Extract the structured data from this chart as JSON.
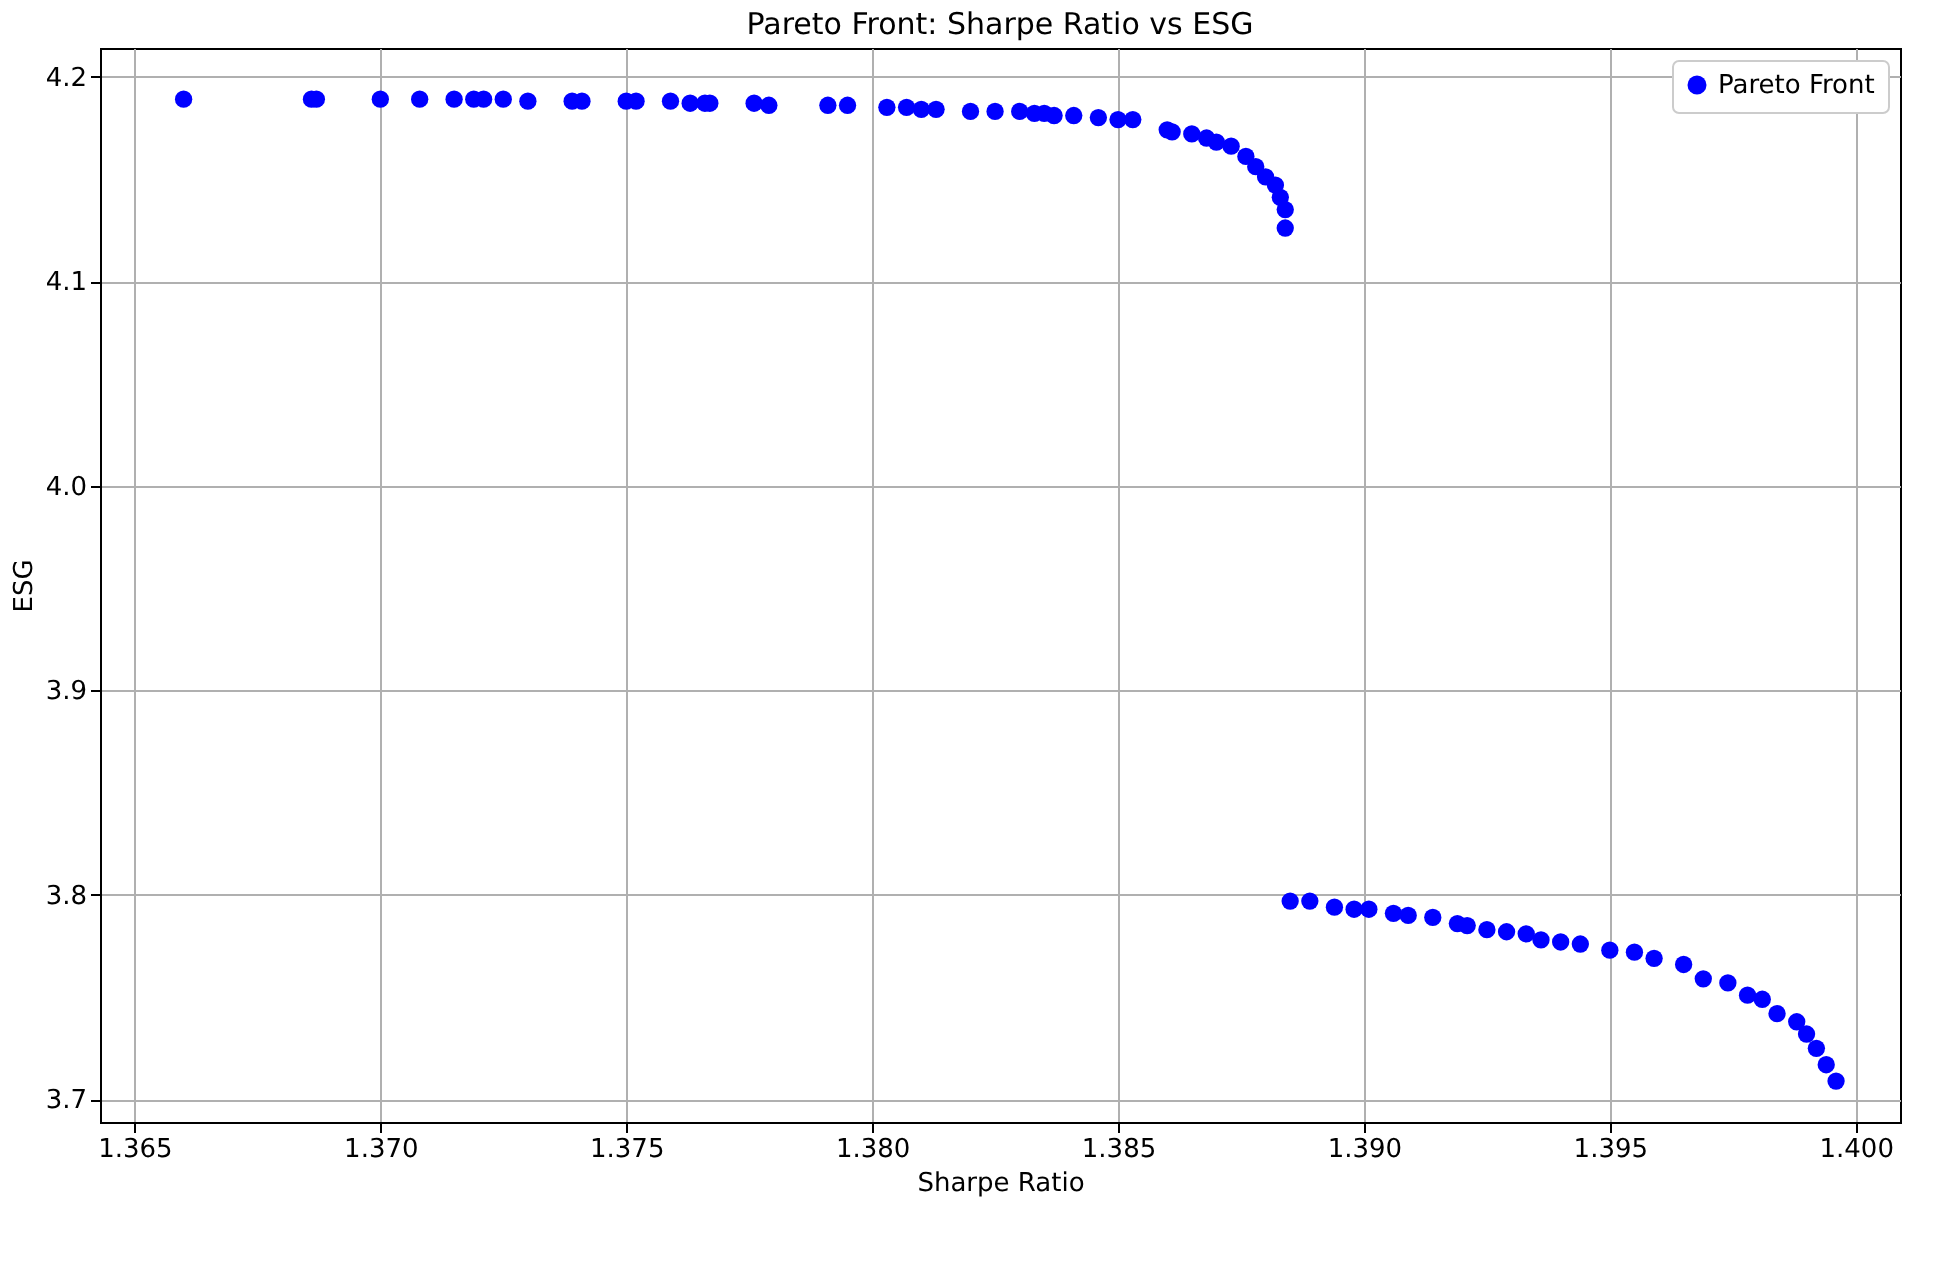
{
  "chart_data": {
    "type": "scatter",
    "title": "Pareto Front: Sharpe Ratio vs ESG",
    "xlabel": "Sharpe Ratio",
    "ylabel": "ESG",
    "xlim": [
      1.3643,
      1.4009
    ],
    "xticks": [
      {
        "value": 1.365,
        "label": "1.365"
      },
      {
        "value": 1.37,
        "label": "1.370"
      },
      {
        "value": 1.375,
        "label": "1.375"
      },
      {
        "value": 1.38,
        "label": "1.380"
      },
      {
        "value": 1.385,
        "label": "1.385"
      },
      {
        "value": 1.39,
        "label": "1.390"
      },
      {
        "value": 1.395,
        "label": "1.395"
      },
      {
        "value": 1.4,
        "label": "1.400"
      }
    ],
    "ylim": [
      3.689,
      4.214
    ],
    "yticks": [
      {
        "value": 3.7,
        "label": "3.7"
      },
      {
        "value": 3.8,
        "label": "3.8"
      },
      {
        "value": 3.9,
        "label": "3.9"
      },
      {
        "value": 4.0,
        "label": "4.0"
      },
      {
        "value": 4.1,
        "label": "4.1"
      },
      {
        "value": 4.2,
        "label": "4.2"
      }
    ],
    "grid": true,
    "legend": "top right",
    "marker": "circle",
    "series": [
      {
        "name": "Pareto Front",
        "color": "#0000ff",
        "x": [
          1.366,
          1.3686,
          1.3687,
          1.37,
          1.3708,
          1.3715,
          1.3719,
          1.3721,
          1.3725,
          1.373,
          1.3739,
          1.3741,
          1.375,
          1.3752,
          1.3759,
          1.3763,
          1.3766,
          1.3767,
          1.3776,
          1.3779,
          1.3791,
          1.3795,
          1.3803,
          1.3807,
          1.381,
          1.3813,
          1.382,
          1.3825,
          1.383,
          1.3833,
          1.3835,
          1.3837,
          1.3841,
          1.3846,
          1.385,
          1.3853,
          1.386,
          1.3861,
          1.3865,
          1.3868,
          1.387,
          1.3873,
          1.3876,
          1.3878,
          1.388,
          1.3882,
          1.3883,
          1.3884,
          1.3884,
          1.3885,
          1.3889,
          1.3894,
          1.3898,
          1.3901,
          1.3906,
          1.3909,
          1.3914,
          1.3919,
          1.3921,
          1.3925,
          1.3929,
          1.3933,
          1.3936,
          1.394,
          1.3944,
          1.395,
          1.3955,
          1.3959,
          1.3965,
          1.3969,
          1.3974,
          1.3978,
          1.3981,
          1.3984,
          1.3988,
          1.399,
          1.3992,
          1.3994,
          1.3996
        ],
        "values": [
          4.189,
          4.189,
          4.189,
          4.189,
          4.189,
          4.189,
          4.189,
          4.189,
          4.189,
          4.188,
          4.188,
          4.188,
          4.188,
          4.188,
          4.188,
          4.187,
          4.187,
          4.187,
          4.187,
          4.186,
          4.186,
          4.186,
          4.185,
          4.185,
          4.184,
          4.184,
          4.183,
          4.183,
          4.183,
          4.182,
          4.182,
          4.181,
          4.181,
          4.18,
          4.179,
          4.179,
          4.174,
          4.173,
          4.172,
          4.17,
          4.168,
          4.166,
          4.161,
          4.156,
          4.151,
          4.147,
          4.141,
          4.135,
          4.126,
          3.797,
          3.797,
          3.794,
          3.793,
          3.793,
          3.791,
          3.79,
          3.789,
          3.786,
          3.785,
          3.783,
          3.782,
          3.781,
          3.778,
          3.777,
          3.776,
          3.773,
          3.772,
          3.769,
          3.766,
          3.759,
          3.757,
          3.751,
          3.749,
          3.742,
          3.738,
          3.732,
          3.725,
          3.717,
          3.709
        ]
      }
    ]
  }
}
